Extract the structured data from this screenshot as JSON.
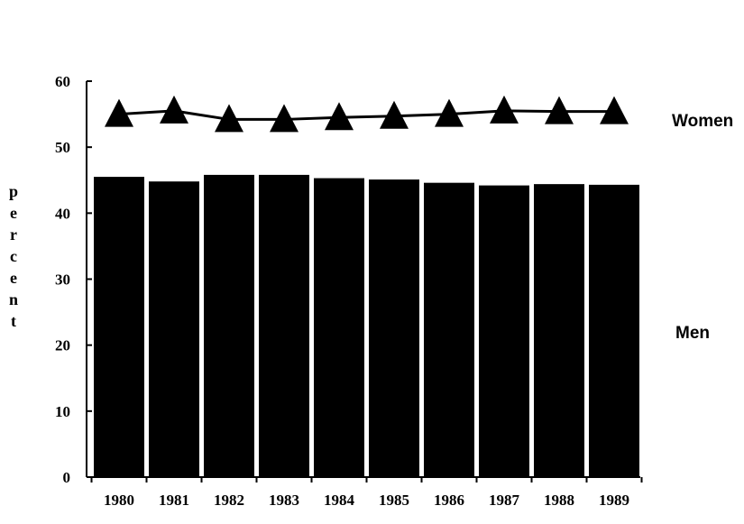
{
  "chart_data": {
    "type": "bar",
    "categories": [
      "1980",
      "1981",
      "1982",
      "1983",
      "1984",
      "1985",
      "1986",
      "1987",
      "1988",
      "1989"
    ],
    "series": [
      {
        "name": "Men",
        "type": "bar",
        "values": [
          45.5,
          44.8,
          45.8,
          45.8,
          45.3,
          45.1,
          44.6,
          44.2,
          44.4,
          44.3
        ]
      },
      {
        "name": "Women",
        "type": "line",
        "marker": "triangle",
        "values": [
          55.0,
          55.5,
          54.2,
          54.2,
          54.5,
          54.7,
          55.0,
          55.5,
          55.4,
          55.4
        ]
      }
    ],
    "ylabel": "percent",
    "ylim": [
      0,
      60
    ],
    "yticks": [
      0,
      10,
      20,
      30,
      40,
      50,
      60
    ],
    "grid": false,
    "legend": "right (labels beside series)",
    "colors": {
      "bars": "#000000",
      "line": "#000000",
      "background": "#ffffff"
    }
  }
}
